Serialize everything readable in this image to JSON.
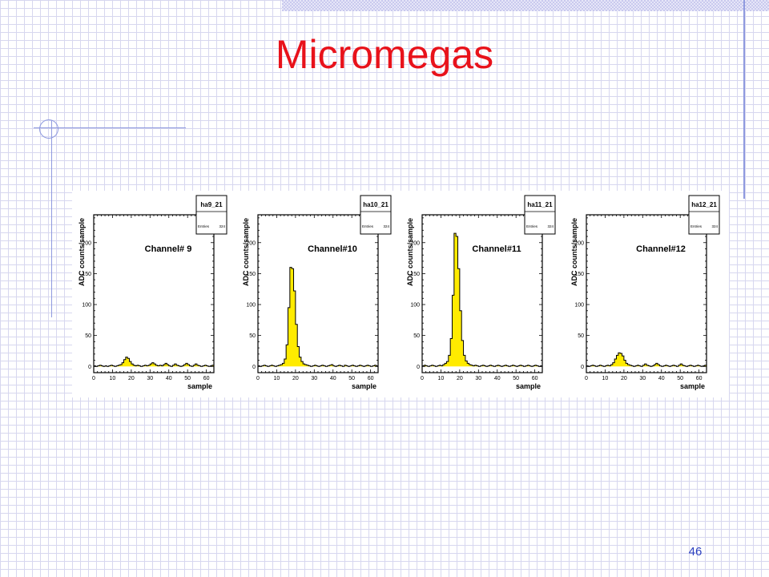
{
  "slide": {
    "title": "Micromegas",
    "page_number": "46"
  },
  "chart_data": [
    {
      "type": "bar",
      "histogram_name": "ha9_21",
      "entries_label": "Entries",
      "entries_value": "324",
      "annotation": "Channel# 9",
      "xlabel": "sample",
      "ylabel": "ADC counts/sample",
      "xlim": [
        0,
        64
      ],
      "ylim": [
        -10,
        245
      ],
      "xticks": [
        0,
        10,
        20,
        30,
        40,
        50,
        60
      ],
      "yticks": [
        0,
        50,
        100,
        150,
        200
      ],
      "x": [
        0,
        1,
        2,
        3,
        4,
        5,
        6,
        7,
        8,
        9,
        10,
        11,
        12,
        13,
        14,
        15,
        16,
        17,
        18,
        19,
        20,
        21,
        22,
        23,
        24,
        25,
        26,
        27,
        28,
        29,
        30,
        31,
        32,
        33,
        34,
        35,
        36,
        37,
        38,
        39,
        40,
        41,
        42,
        43,
        44,
        45,
        46,
        47,
        48,
        49,
        50,
        51,
        52,
        53,
        54,
        55,
        56,
        57,
        58,
        59,
        60,
        61,
        62,
        63
      ],
      "values": [
        1,
        0,
        1,
        2,
        1,
        0,
        1,
        0,
        1,
        2,
        1,
        0,
        1,
        2,
        3,
        6,
        11,
        15,
        13,
        8,
        4,
        2,
        1,
        2,
        1,
        0,
        1,
        2,
        1,
        2,
        4,
        6,
        4,
        2,
        1,
        2,
        1,
        3,
        5,
        3,
        1,
        0,
        2,
        4,
        2,
        1,
        0,
        1,
        3,
        5,
        3,
        1,
        0,
        2,
        4,
        2,
        1,
        0,
        1,
        2,
        1,
        0,
        1,
        2
      ]
    },
    {
      "type": "bar",
      "histogram_name": "ha10_21",
      "entries_label": "Entries",
      "entries_value": "324",
      "annotation": "Channel#10",
      "xlabel": "sample",
      "ylabel": "ADC counts/sample",
      "xlim": [
        0,
        64
      ],
      "ylim": [
        -10,
        245
      ],
      "xticks": [
        0,
        10,
        20,
        30,
        40,
        50,
        60
      ],
      "yticks": [
        0,
        50,
        100,
        150,
        200
      ],
      "x": [
        0,
        1,
        2,
        3,
        4,
        5,
        6,
        7,
        8,
        9,
        10,
        11,
        12,
        13,
        14,
        15,
        16,
        17,
        18,
        19,
        20,
        21,
        22,
        23,
        24,
        25,
        26,
        27,
        28,
        29,
        30,
        31,
        32,
        33,
        34,
        35,
        36,
        37,
        38,
        39,
        40,
        41,
        42,
        43,
        44,
        45,
        46,
        47,
        48,
        49,
        50,
        51,
        52,
        53,
        54,
        55,
        56,
        57,
        58,
        59,
        60,
        61,
        62,
        63
      ],
      "values": [
        1,
        0,
        1,
        2,
        1,
        0,
        1,
        2,
        1,
        0,
        1,
        2,
        3,
        5,
        12,
        35,
        95,
        160,
        158,
        122,
        68,
        32,
        15,
        8,
        4,
        3,
        2,
        1,
        0,
        1,
        2,
        1,
        0,
        1,
        2,
        1,
        0,
        1,
        2,
        3,
        1,
        0,
        1,
        2,
        1,
        0,
        2,
        1,
        0,
        1,
        2,
        1,
        0,
        1,
        2,
        1,
        0,
        1,
        2,
        1,
        0,
        1,
        2,
        1
      ]
    },
    {
      "type": "bar",
      "histogram_name": "ha11_21",
      "entries_label": "Entries",
      "entries_value": "324",
      "annotation": "Channel#11",
      "xlabel": "sample",
      "ylabel": "ADC counts/sample",
      "xlim": [
        0,
        64
      ],
      "ylim": [
        -10,
        245
      ],
      "xticks": [
        0,
        10,
        20,
        30,
        40,
        50,
        60
      ],
      "yticks": [
        0,
        50,
        100,
        150,
        200
      ],
      "x": [
        0,
        1,
        2,
        3,
        4,
        5,
        6,
        7,
        8,
        9,
        10,
        11,
        12,
        13,
        14,
        15,
        16,
        17,
        18,
        19,
        20,
        21,
        22,
        23,
        24,
        25,
        26,
        27,
        28,
        29,
        30,
        31,
        32,
        33,
        34,
        35,
        36,
        37,
        38,
        39,
        40,
        41,
        42,
        43,
        44,
        45,
        46,
        47,
        48,
        49,
        50,
        51,
        52,
        53,
        54,
        55,
        56,
        57,
        58,
        59,
        60,
        61,
        62,
        63
      ],
      "values": [
        1,
        2,
        1,
        0,
        1,
        2,
        1,
        0,
        1,
        2,
        1,
        3,
        5,
        8,
        18,
        45,
        115,
        215,
        210,
        158,
        90,
        42,
        18,
        9,
        5,
        3,
        2,
        1,
        2,
        1,
        0,
        1,
        2,
        1,
        0,
        1,
        2,
        1,
        0,
        1,
        2,
        1,
        0,
        1,
        2,
        1,
        0,
        1,
        2,
        1,
        0,
        1,
        2,
        1,
        0,
        1,
        2,
        1,
        0,
        1,
        2,
        1,
        0,
        1
      ]
    },
    {
      "type": "bar",
      "histogram_name": "ha12_21",
      "entries_label": "Entries",
      "entries_value": "324",
      "annotation": "Channel#12",
      "xlabel": "sample",
      "ylabel": "ADC counts/sample",
      "xlim": [
        0,
        64
      ],
      "ylim": [
        -10,
        245
      ],
      "xticks": [
        0,
        10,
        20,
        30,
        40,
        50,
        60
      ],
      "yticks": [
        0,
        50,
        100,
        150,
        200
      ],
      "x": [
        0,
        1,
        2,
        3,
        4,
        5,
        6,
        7,
        8,
        9,
        10,
        11,
        12,
        13,
        14,
        15,
        16,
        17,
        18,
        19,
        20,
        21,
        22,
        23,
        24,
        25,
        26,
        27,
        28,
        29,
        30,
        31,
        32,
        33,
        34,
        35,
        36,
        37,
        38,
        39,
        40,
        41,
        42,
        43,
        44,
        45,
        46,
        47,
        48,
        49,
        50,
        51,
        52,
        53,
        54,
        55,
        56,
        57,
        58,
        59,
        60,
        61,
        62,
        63
      ],
      "values": [
        1,
        0,
        1,
        2,
        1,
        0,
        1,
        2,
        1,
        0,
        1,
        2,
        1,
        3,
        6,
        12,
        18,
        22,
        21,
        17,
        10,
        5,
        3,
        2,
        1,
        0,
        1,
        2,
        1,
        0,
        2,
        4,
        2,
        1,
        0,
        1,
        3,
        5,
        3,
        1,
        0,
        1,
        2,
        1,
        0,
        1,
        2,
        1,
        0,
        2,
        4,
        2,
        1,
        0,
        1,
        2,
        1,
        0,
        1,
        2,
        1,
        0,
        1,
        2
      ]
    }
  ],
  "colors": {
    "title": "#e8121b",
    "fill": "#ffeb00",
    "accent_lines": "#8f9adf",
    "page_number": "#2a3fbf"
  }
}
